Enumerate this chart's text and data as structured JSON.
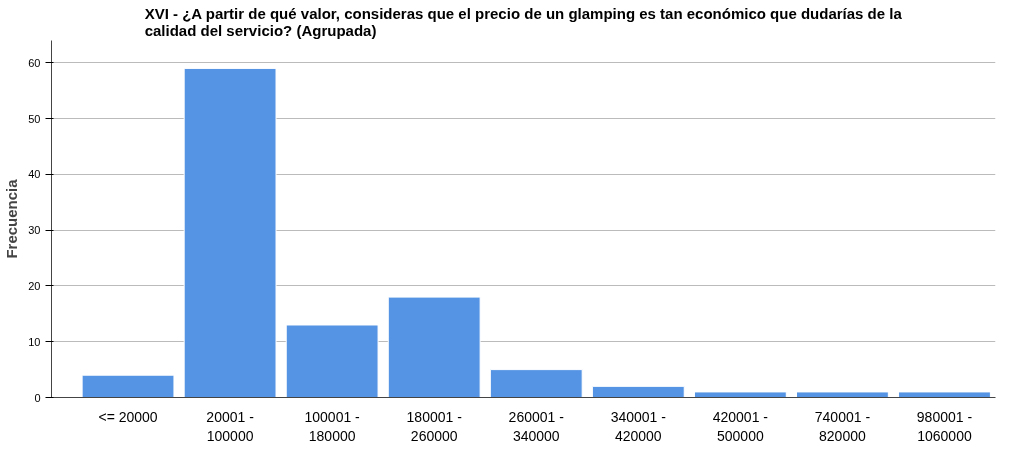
{
  "chart_data": {
    "type": "bar",
    "title": "XVI - ¿A partir de qué valor, consideras que el precio de un glamping es tan económico que dudarías de la calidad del servicio? (Agrupada)",
    "ylabel": "Frecuencia",
    "categories": [
      "<= 20000",
      "20001 -\n100000",
      "100001 -\n180000",
      "180001 -\n260000",
      "260001 -\n340000",
      "340001 -\n420000",
      "420001 -\n500000",
      "740001 -\n820000",
      "980001 -\n1060000"
    ],
    "values": [
      4,
      59,
      13,
      18,
      5,
      2,
      1,
      1,
      1
    ],
    "color": "#5594e4",
    "ylim": [
      0,
      64
    ],
    "yticks": [
      0,
      10,
      20,
      30,
      40,
      50,
      60
    ],
    "grid": "y"
  }
}
